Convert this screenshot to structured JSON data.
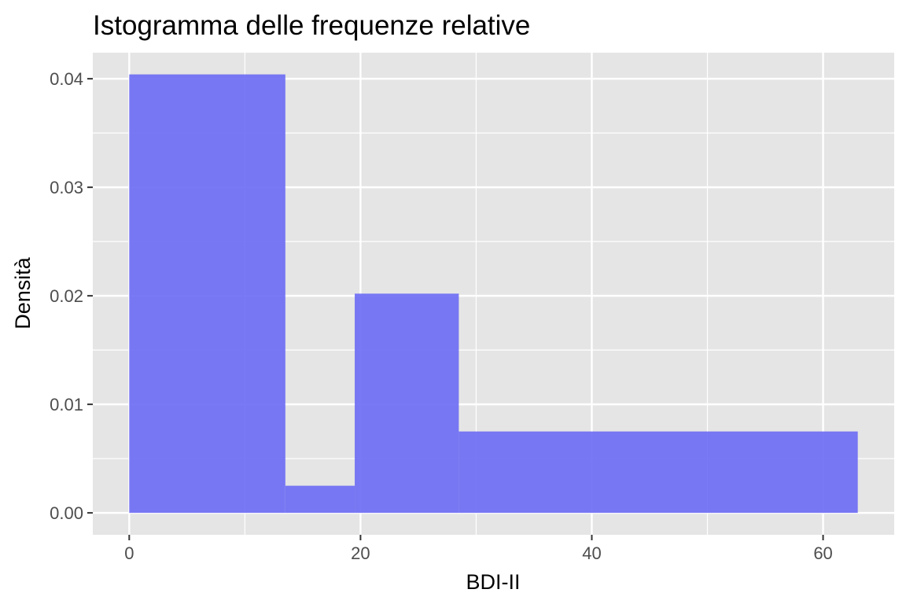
{
  "chart_data": {
    "type": "bar",
    "title": "Istogramma delle frequenze relative",
    "xlabel": "BDI-II",
    "ylabel": "Densità",
    "xlim": [
      -3.15,
      66.15
    ],
    "ylim": [
      -0.00202,
      0.0424
    ],
    "x_ticks": [
      {
        "value": 0,
        "label": "0"
      },
      {
        "value": 20,
        "label": "20"
      },
      {
        "value": 40,
        "label": "40"
      },
      {
        "value": 60,
        "label": "60"
      }
    ],
    "y_ticks": [
      {
        "value": 0.0,
        "label": "0.00"
      },
      {
        "value": 0.01,
        "label": "0.01"
      },
      {
        "value": 0.02,
        "label": "0.02"
      },
      {
        "value": 0.03,
        "label": "0.03"
      },
      {
        "value": 0.04,
        "label": "0.04"
      }
    ],
    "bins": [
      {
        "start": 0,
        "end": 13.5,
        "density": 0.0404
      },
      {
        "start": 13.5,
        "end": 19.5,
        "density": 0.0025
      },
      {
        "start": 19.5,
        "end": 28.5,
        "density": 0.0202
      },
      {
        "start": 28.5,
        "end": 63,
        "density": 0.0075
      }
    ],
    "grid": true,
    "colors": {
      "bar_fill": "#6a6af4",
      "panel_bg": "#e5e5e5",
      "grid_line": "#ffffff"
    }
  }
}
